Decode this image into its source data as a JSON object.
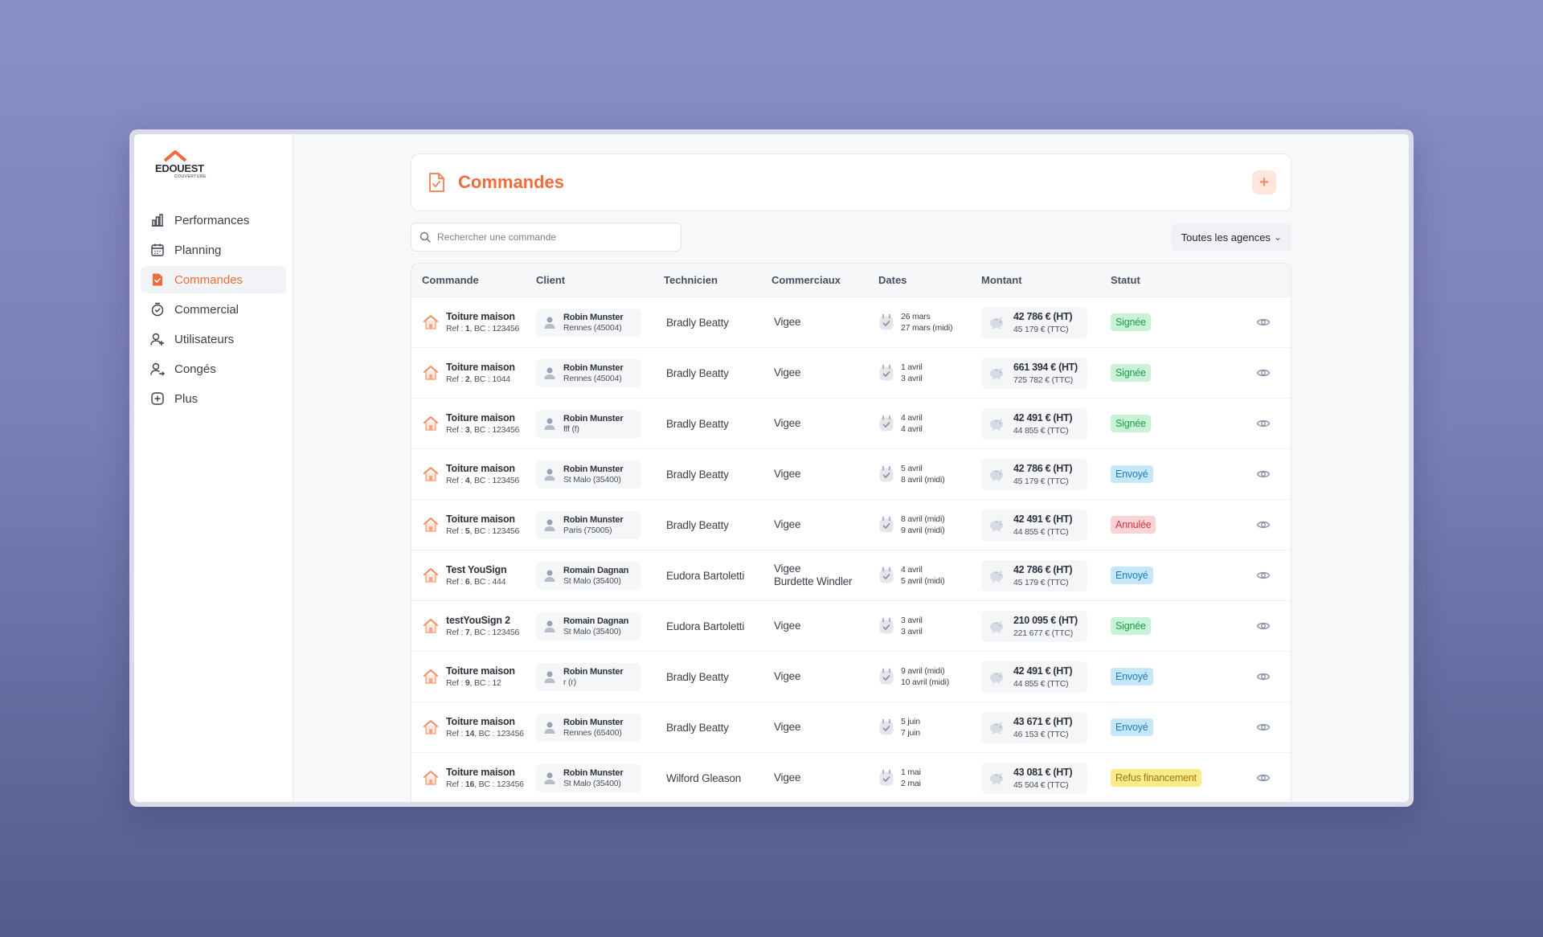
{
  "brand": {
    "name_part1": "ED",
    "name_part2": "OUEST",
    "subtitle": "COUVERTURE",
    "accent": "#f26b3a"
  },
  "sidebar": {
    "items": [
      {
        "label": "Performances",
        "icon": "bar-chart-icon",
        "active": false
      },
      {
        "label": "Planning",
        "icon": "calendar-icon",
        "active": false
      },
      {
        "label": "Commandes",
        "icon": "document-check-icon",
        "active": true
      },
      {
        "label": "Commercial",
        "icon": "clock-check-icon",
        "active": false
      },
      {
        "label": "Utilisateurs",
        "icon": "user-add-icon",
        "active": false
      },
      {
        "label": "Congés",
        "icon": "user-leave-icon",
        "active": false
      },
      {
        "label": "Plus",
        "icon": "plus-square-icon",
        "active": false
      }
    ]
  },
  "header": {
    "title": "Commandes",
    "add_label": "+"
  },
  "search": {
    "placeholder": "Rechercher une commande"
  },
  "filter": {
    "label": "Toutes les agences",
    "chevron": "⌄"
  },
  "table": {
    "columns": [
      "Commande",
      "Client",
      "Technicien",
      "Commerciaux",
      "Dates",
      "Montant",
      "Statut"
    ],
    "rows": [
      {
        "title": "Toiture maison",
        "ref_prefix": "Ref : ",
        "ref_num": "1",
        "ref_suffix": ", BC : 123456",
        "client_name": "Robin Munster",
        "client_city": "Rennes (45004)",
        "technician": "Bradly Beatty",
        "commercial1": "Vigee",
        "commercial2": "",
        "date1": "26 mars",
        "date2": "27 mars (midi)",
        "amount_ht": "42 786 € (HT)",
        "amount_ttc": "45 179 € (TTC)",
        "status": "Signée",
        "status_type": "signee"
      },
      {
        "title": "Toiture maison",
        "ref_prefix": "Ref : ",
        "ref_num": "2",
        "ref_suffix": ", BC : 1044",
        "client_name": "Robin Munster",
        "client_city": "Rennes (45004)",
        "technician": "Bradly Beatty",
        "commercial1": "Vigee",
        "commercial2": "",
        "date1": "1 avril",
        "date2": "3 avril",
        "amount_ht": "661 394 € (HT)",
        "amount_ttc": "725 782 € (TTC)",
        "status": "Signée",
        "status_type": "signee"
      },
      {
        "title": "Toiture maison",
        "ref_prefix": "Ref : ",
        "ref_num": "3",
        "ref_suffix": ", BC : 123456",
        "client_name": "Robin Munster",
        "client_city": "fff (f)",
        "technician": "Bradly Beatty",
        "commercial1": "Vigee",
        "commercial2": "",
        "date1": "4 avril",
        "date2": "4 avril",
        "amount_ht": "42 491 € (HT)",
        "amount_ttc": "44 855 € (TTC)",
        "status": "Signée",
        "status_type": "signee"
      },
      {
        "title": "Toiture maison",
        "ref_prefix": "Ref : ",
        "ref_num": "4",
        "ref_suffix": ", BC : 123456",
        "client_name": "Robin Munster",
        "client_city": "St Malo (35400)",
        "technician": "Bradly Beatty",
        "commercial1": "Vigee",
        "commercial2": "",
        "date1": "5 avril",
        "date2": "8 avril (midi)",
        "amount_ht": "42 786 € (HT)",
        "amount_ttc": "45 179 € (TTC)",
        "status": "Envoyé",
        "status_type": "envoye"
      },
      {
        "title": "Toiture maison",
        "ref_prefix": "Ref : ",
        "ref_num": "5",
        "ref_suffix": ", BC : 123456",
        "client_name": "Robin Munster",
        "client_city": "Paris (75005)",
        "technician": "Bradly Beatty",
        "commercial1": "Vigee",
        "commercial2": "",
        "date1": "8 avril (midi)",
        "date2": "9 avril (midi)",
        "amount_ht": "42 491 € (HT)",
        "amount_ttc": "44 855 € (TTC)",
        "status": "Annulée",
        "status_type": "annulee"
      },
      {
        "title": "Test YouSign",
        "ref_prefix": "Ref : ",
        "ref_num": "6",
        "ref_suffix": ", BC : 444",
        "client_name": "Romain Dagnan",
        "client_city": "St Malo (35400)",
        "technician": "Eudora Bartoletti",
        "commercial1": "Vigee",
        "commercial2": "Burdette Windler",
        "date1": "4 avril",
        "date2": "5 avril (midi)",
        "amount_ht": "42 786 € (HT)",
        "amount_ttc": "45 179 € (TTC)",
        "status": "Envoyé",
        "status_type": "envoye"
      },
      {
        "title": "testYouSign 2",
        "ref_prefix": "Ref : ",
        "ref_num": "7",
        "ref_suffix": ", BC : 123456",
        "client_name": "Romain Dagnan",
        "client_city": "St Malo (35400)",
        "technician": "Eudora Bartoletti",
        "commercial1": "Vigee",
        "commercial2": "",
        "date1": "3 avril",
        "date2": "3 avril",
        "amount_ht": "210 095 € (HT)",
        "amount_ttc": "221 677 € (TTC)",
        "status": "Signée",
        "status_type": "signee"
      },
      {
        "title": "Toiture maison",
        "ref_prefix": "Ref : ",
        "ref_num": "9",
        "ref_suffix": ", BC : 12",
        "client_name": "Robin Munster",
        "client_city": "r (r)",
        "technician": "Bradly Beatty",
        "commercial1": "Vigee",
        "commercial2": "",
        "date1": "9 avril (midi)",
        "date2": "10 avril (midi)",
        "amount_ht": "42 491 € (HT)",
        "amount_ttc": "44 855 € (TTC)",
        "status": "Envoyé",
        "status_type": "envoye"
      },
      {
        "title": "Toiture maison",
        "ref_prefix": "Ref : ",
        "ref_num": "14",
        "ref_suffix": ", BC : 123456",
        "client_name": "Robin Munster",
        "client_city": "Rennes (65400)",
        "technician": "Bradly Beatty",
        "commercial1": "Vigee",
        "commercial2": "",
        "date1": "5 juin",
        "date2": "7 juin",
        "amount_ht": "43 671 € (HT)",
        "amount_ttc": "46 153 € (TTC)",
        "status": "Envoyé",
        "status_type": "envoye"
      },
      {
        "title": "Toiture maison",
        "ref_prefix": "Ref : ",
        "ref_num": "16",
        "ref_suffix": ", BC : 123456",
        "client_name": "Robin Munster",
        "client_city": "St Malo (35400)",
        "technician": "Wilford Gleason",
        "commercial1": "Vigee",
        "commercial2": "",
        "date1": "1 mai",
        "date2": "2 mai",
        "amount_ht": "43 081 € (HT)",
        "amount_ttc": "45 504 € (TTC)",
        "status": "Refus financement",
        "status_type": "refus"
      }
    ]
  }
}
